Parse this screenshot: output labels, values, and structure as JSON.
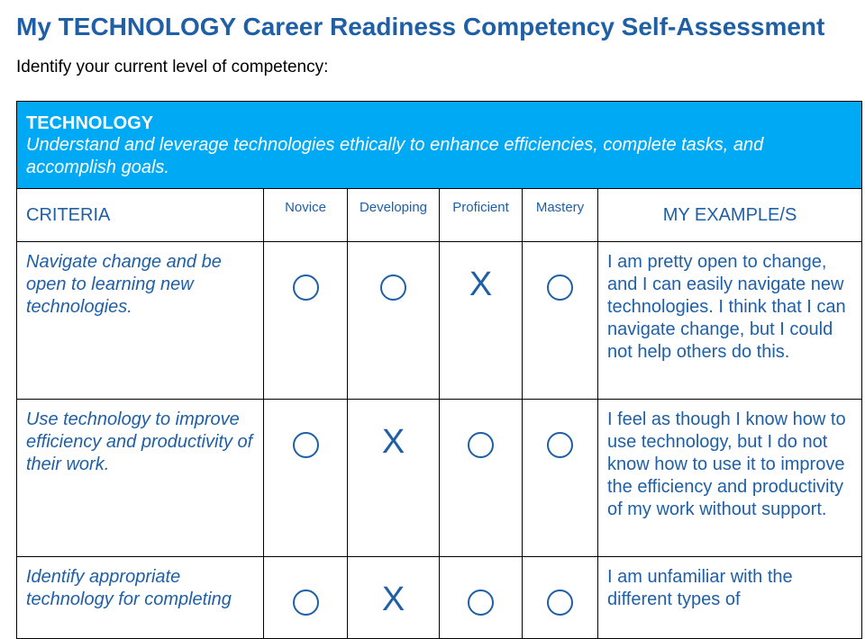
{
  "page": {
    "title": "My TECHNOLOGY Career Readiness Competency Self-Assessment",
    "subtitle": "Identify your current level of competency:"
  },
  "banner": {
    "title": "TECHNOLOGY",
    "description": "Understand and leverage technologies ethically to enhance efficiencies, complete tasks, and accomplish goals.",
    "color": "#00a9f4"
  },
  "headers": {
    "criteria": "CRITERIA",
    "levels": [
      "Novice",
      "Developing",
      "Proficient",
      "Mastery"
    ],
    "examples": "MY EXAMPLE/S"
  },
  "rows": [
    {
      "criteria": "Navigate change and be open to learning new technologies.",
      "selected_level": "Proficient",
      "marks": [
        "○",
        "○",
        "X",
        "○"
      ],
      "example": "I am pretty open to change, and I can easily navigate new technologies. I think that I can navigate change, but I could not help others do this."
    },
    {
      "criteria": "Use technology to improve efficiency and productivity of their work.",
      "selected_level": "Developing",
      "marks": [
        "○",
        "X",
        "○",
        "○"
      ],
      "example": "I feel as though I know how to use technology, but I do not know how to use it to improve the efficiency and productivity of my work without support."
    },
    {
      "criteria": "Identify appropriate technology for completing",
      "selected_level": "Developing",
      "marks": [
        "○",
        "X",
        "○",
        "○"
      ],
      "example": "I am unfamiliar with the different types of"
    }
  ],
  "colors": {
    "text_blue": "#1f5fa6",
    "border": "#000000"
  }
}
